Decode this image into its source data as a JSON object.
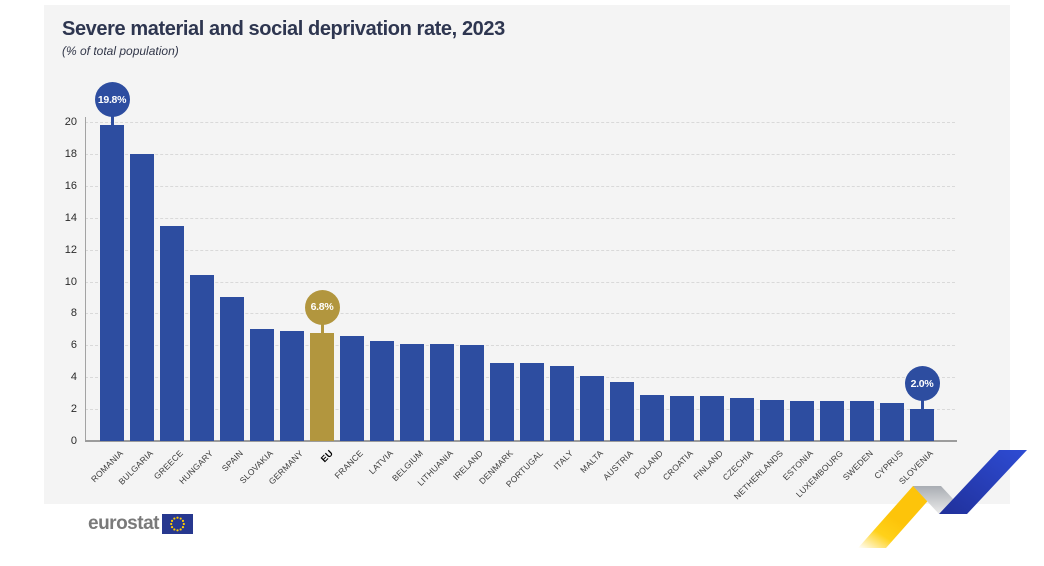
{
  "header": {
    "title": "Severe material and social deprivation rate, 2023",
    "subtitle": "(% of total population)"
  },
  "chart_data": {
    "type": "bar",
    "title": "Severe material and social deprivation rate, 2023",
    "subtitle": "(% of total population)",
    "categories": [
      "ROMANIA",
      "BULGARIA",
      "GREECE",
      "HUNGARY",
      "SPAIN",
      "SLOVAKIA",
      "GERMANY",
      "EU",
      "FRANCE",
      "LATVIA",
      "BELGIUM",
      "LITHUANIA",
      "IRELAND",
      "DENMARK",
      "PORTUGAL",
      "ITALY",
      "MALTA",
      "AUSTRIA",
      "POLAND",
      "CROATIA",
      "FINLAND",
      "CZECHIA",
      "NETHERLANDS",
      "ESTONIA",
      "LUXEMBOURG",
      "SWEDEN",
      "CYPRUS",
      "SLOVENIA"
    ],
    "values": [
      19.8,
      18.0,
      13.5,
      10.4,
      9.0,
      7.0,
      6.9,
      6.8,
      6.6,
      6.3,
      6.1,
      6.1,
      6.0,
      4.9,
      4.9,
      4.7,
      4.1,
      3.7,
      2.9,
      2.8,
      2.8,
      2.7,
      2.6,
      2.5,
      2.5,
      2.5,
      2.4,
      2.0
    ],
    "highlight_category": "EU",
    "callouts": [
      {
        "category": "ROMANIA",
        "label": "19.8%"
      },
      {
        "category": "EU",
        "label": "6.8%"
      },
      {
        "category": "SLOVENIA",
        "label": "2.0%"
      }
    ],
    "ylim": [
      0,
      20
    ],
    "yticks": [
      0,
      2,
      4,
      6,
      8,
      10,
      12,
      14,
      16,
      18,
      20
    ],
    "xlabel": "",
    "ylabel": "",
    "grid": "horizontal-dashed",
    "legend": "none",
    "bar_color": "#2d4da0",
    "highlight_color": "#b2963e",
    "callout_text_color": "#ffffff"
  },
  "footer": {
    "logo_text": "eurostat"
  },
  "style_colors": {
    "panel_background": "#f4f4f4",
    "grid_color": "#d9d9d9",
    "axis_color": "#9c9c9c",
    "title_color": "#2e3650",
    "flag_blue": "#27388f",
    "star_yellow": "#ffcc00",
    "ribbon_yellow": "#ffcc00",
    "ribbon_gray": "#c0c3c9",
    "ribbon_blue": "#2b46c6"
  }
}
